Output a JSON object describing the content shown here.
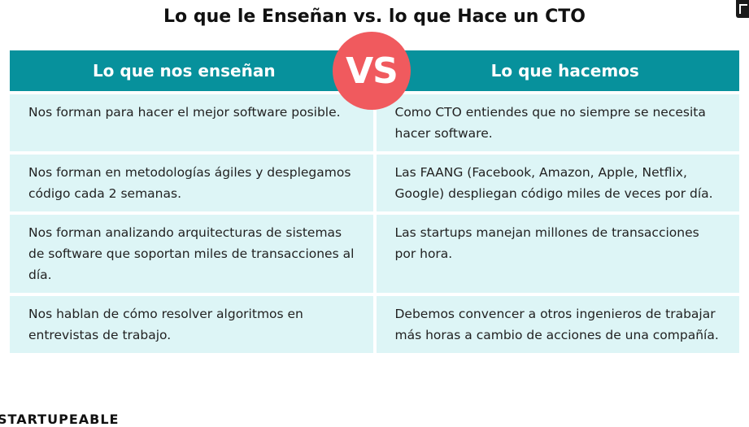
{
  "title": "Lo que le Enseñan vs. lo que Hace un CTO",
  "header": {
    "left": "Lo que nos enseñan",
    "right": "Lo que hacemos",
    "badge": "VS"
  },
  "rows": [
    {
      "left": "Nos forman para hacer el mejor software posible.",
      "right": "Como CTO entiendes que no siempre se necesita hacer software."
    },
    {
      "left": "Nos forman en metodologías ágiles y desplegamos código cada 2 semanas.",
      "right": "Las FAANG (Facebook, Amazon, Apple, Netflix, Google) despliegan código miles de veces por día."
    },
    {
      "left": "Nos forman analizando arquitecturas de sistemas de software que soportan miles de transacciones al día.",
      "right": "Las startups manejan millones de transacciones por hora."
    },
    {
      "left": "Nos hablan de cómo resolver algoritmos en entrevistas de trabajo.",
      "right": "Debemos convencer a otros ingenieros de trabajar más horas a cambio de acciones de una compañía."
    }
  ],
  "footer": {
    "brand": "STARTUPEABLE"
  },
  "colors": {
    "header_bg": "#07919c",
    "cell_bg": "#ddf5f6",
    "badge_bg": "#f05a5e"
  }
}
